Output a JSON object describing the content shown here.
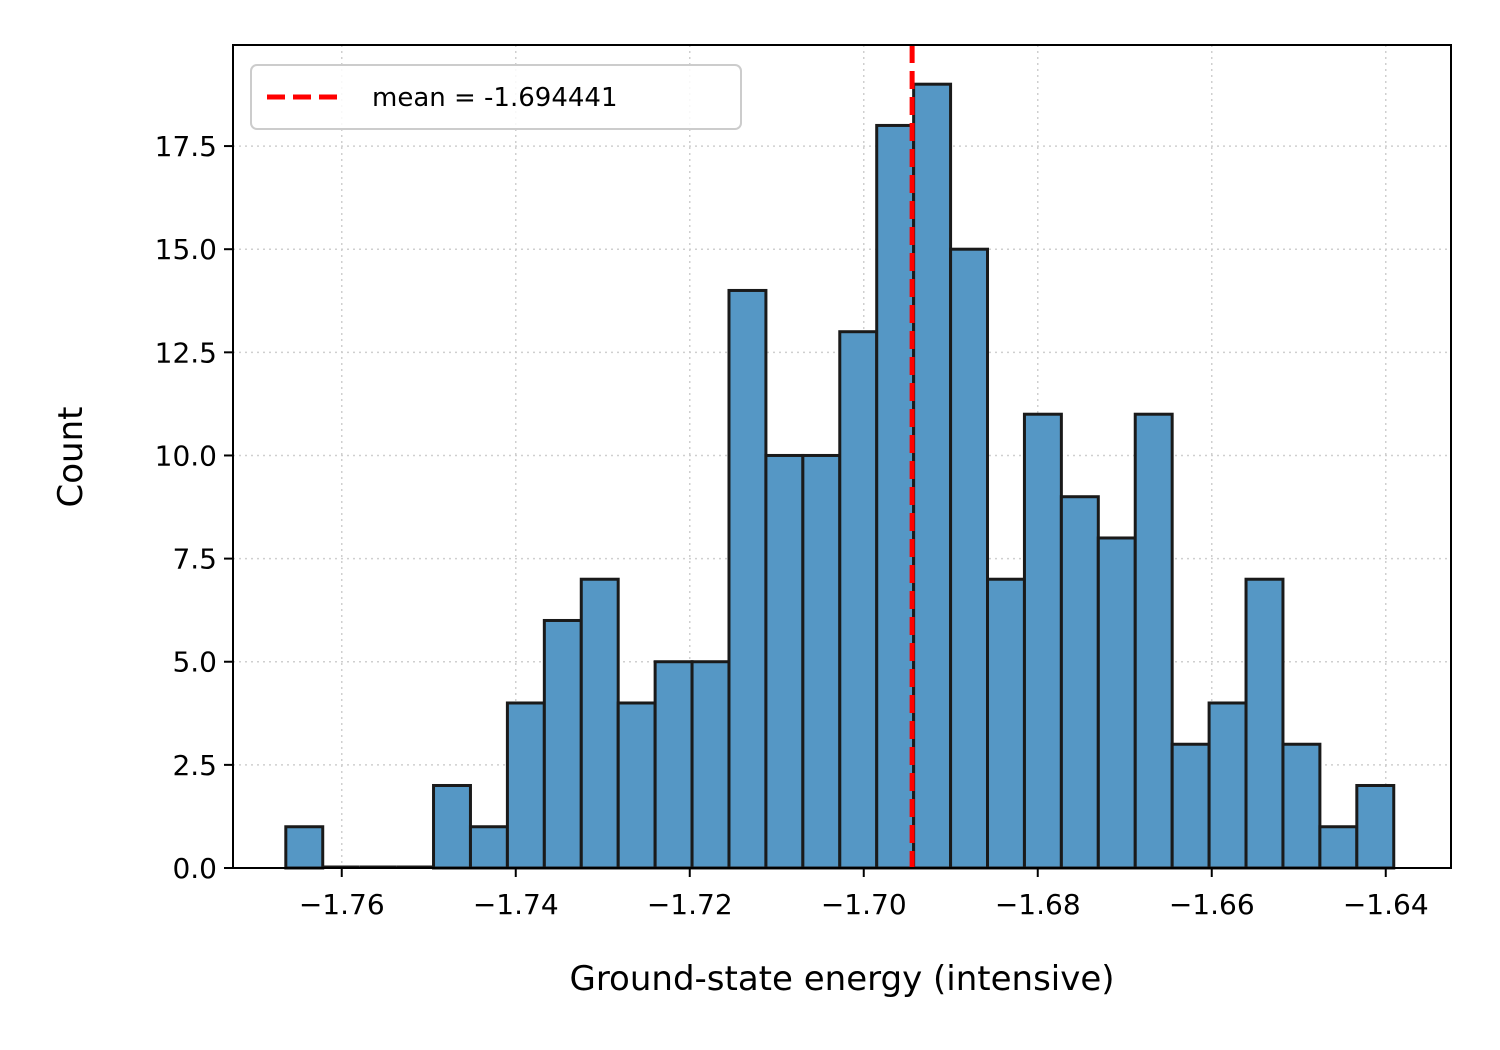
{
  "chart_data": {
    "type": "bar",
    "subtype": "histogram",
    "xlabel": "Ground-state energy (intensive)",
    "ylabel": "Count",
    "xlim": [
      -1.7725,
      -1.6325
    ],
    "ylim": [
      0,
      19.95
    ],
    "xticks": [
      -1.76,
      -1.74,
      -1.72,
      -1.7,
      -1.68,
      -1.66,
      -1.64
    ],
    "xtick_labels": [
      "−1.76",
      "−1.74",
      "−1.72",
      "−1.70",
      "−1.68",
      "−1.66",
      "−1.64"
    ],
    "yticks": [
      0,
      2.5,
      5,
      7.5,
      10,
      12.5,
      15,
      17.5
    ],
    "ytick_labels": [
      "0.0",
      "2.5",
      "5.0",
      "7.5",
      "10.0",
      "12.5",
      "15.0",
      "17.5"
    ],
    "grid": true,
    "bin_start": -1.76643,
    "bin_width": 0.004245,
    "values": [
      1,
      0,
      0,
      0,
      2,
      1,
      4,
      6,
      7,
      4,
      5,
      5,
      14,
      10,
      10,
      13,
      18,
      19,
      15,
      7,
      11,
      9,
      8,
      11,
      3,
      4,
      7,
      3,
      1,
      2
    ],
    "bar_color": "#5597c5",
    "edge_color": "#1a1a1a",
    "mean_line": {
      "x": -1.694441,
      "label": "mean = -1.694441",
      "color": "#ff0000",
      "style": "dashed"
    },
    "legend_position": "top-left"
  }
}
